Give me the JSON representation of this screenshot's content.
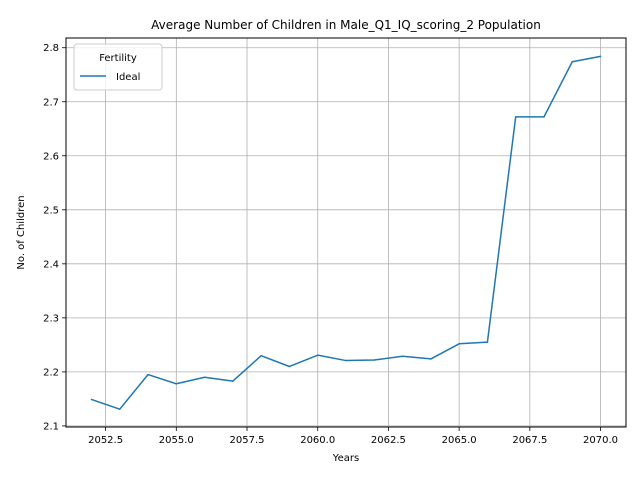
{
  "chart_data": {
    "type": "line",
    "title": "Average Number of Children in Male_Q1_IQ_scoring_2 Population",
    "xlabel": "Years",
    "ylabel": "No. of Children",
    "xlim": [
      2051.1,
      2070.9
    ],
    "ylim": [
      2.098,
      2.818
    ],
    "x_ticks": [
      2052.5,
      2055.0,
      2057.5,
      2060.0,
      2062.5,
      2065.0,
      2067.5,
      2070.0
    ],
    "x_tick_labels": [
      "2052.5",
      "2055.0",
      "2057.5",
      "2060.0",
      "2062.5",
      "2065.0",
      "2067.5",
      "2070.0"
    ],
    "y_ticks": [
      2.1,
      2.2,
      2.3,
      2.4,
      2.5,
      2.6,
      2.7,
      2.8
    ],
    "y_tick_labels": [
      "2.1",
      "2.2",
      "2.3",
      "2.4",
      "2.5",
      "2.6",
      "2.7",
      "2.8"
    ],
    "grid": true,
    "legend": {
      "title": "Fertility",
      "placement": "top-left"
    },
    "series": [
      {
        "name": "Ideal",
        "color": "#1f77b4",
        "x": [
          2052,
          2053,
          2054,
          2055,
          2056,
          2057,
          2058,
          2059,
          2060,
          2061,
          2062,
          2063,
          2064,
          2065,
          2066,
          2067,
          2068,
          2069,
          2070
        ],
        "y": [
          2.149,
          2.131,
          2.195,
          2.178,
          2.19,
          2.183,
          2.23,
          2.21,
          2.231,
          2.221,
          2.222,
          2.229,
          2.224,
          2.252,
          2.255,
          2.672,
          2.672,
          2.774,
          2.784
        ]
      }
    ]
  }
}
